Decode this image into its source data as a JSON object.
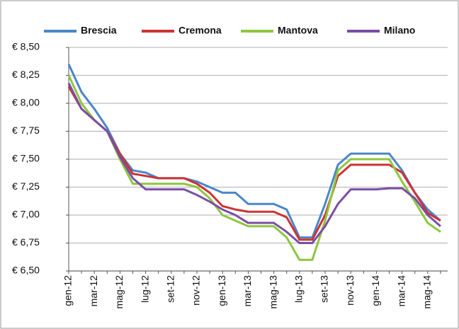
{
  "chart_data": {
    "type": "line",
    "categories": [
      "gen-12",
      null,
      "mar-12",
      null,
      "mag-12",
      null,
      "lug-12",
      null,
      "set-12",
      null,
      "nov-12",
      null,
      "gen-13",
      null,
      "mar-13",
      null,
      "mag-13",
      null,
      "lug-13",
      null,
      "set-13",
      null,
      "nov-13",
      null,
      "gen-14",
      null,
      "mar-14",
      null,
      "mag-14",
      null
    ],
    "series": [
      {
        "name": "Brescia",
        "color": "#4a86c8",
        "values": [
          8.35,
          8.1,
          7.95,
          7.78,
          7.55,
          7.4,
          7.38,
          7.33,
          7.33,
          7.33,
          7.3,
          7.25,
          7.2,
          7.2,
          7.1,
          7.1,
          7.1,
          7.05,
          6.8,
          6.8,
          7.1,
          7.45,
          7.55,
          7.55,
          7.55,
          7.55,
          7.4,
          7.2,
          7.05,
          6.95
        ]
      },
      {
        "name": "Cremona",
        "color": "#cc3333",
        "values": [
          8.15,
          7.95,
          7.85,
          7.75,
          7.55,
          7.37,
          7.35,
          7.33,
          7.33,
          7.33,
          7.28,
          7.2,
          7.08,
          7.05,
          7.03,
          7.03,
          7.03,
          6.98,
          6.78,
          6.78,
          7.0,
          7.35,
          7.45,
          7.45,
          7.45,
          7.45,
          7.38,
          7.2,
          7.02,
          6.95
        ]
      },
      {
        "name": "Mantova",
        "color": "#8dc63f",
        "values": [
          8.25,
          8.0,
          7.85,
          7.75,
          7.5,
          7.28,
          7.28,
          7.28,
          7.28,
          7.28,
          7.25,
          7.15,
          7.0,
          6.95,
          6.9,
          6.9,
          6.9,
          6.8,
          6.6,
          6.6,
          6.95,
          7.4,
          7.5,
          7.5,
          7.5,
          7.5,
          7.3,
          7.12,
          6.93,
          6.85
        ]
      },
      {
        "name": "Milano",
        "color": "#7a4ea3",
        "values": [
          8.18,
          7.95,
          7.85,
          7.75,
          7.52,
          7.33,
          7.23,
          7.23,
          7.23,
          7.23,
          7.18,
          7.12,
          7.05,
          7.0,
          6.93,
          6.93,
          6.93,
          6.85,
          6.75,
          6.75,
          6.9,
          7.1,
          7.23,
          7.23,
          7.23,
          7.24,
          7.24,
          7.15,
          7.0,
          6.9
        ]
      }
    ],
    "ylim": [
      6.5,
      8.5
    ],
    "yticks": [
      {
        "value": 6.5,
        "label": "€ 6,50"
      },
      {
        "value": 6.75,
        "label": "€ 6,75"
      },
      {
        "value": 7.0,
        "label": "€ 7,00"
      },
      {
        "value": 7.25,
        "label": "€ 7,25"
      },
      {
        "value": 7.5,
        "label": "€ 7,50"
      },
      {
        "value": 7.75,
        "label": "€ 7,75"
      },
      {
        "value": 8.0,
        "label": "€ 8,00"
      },
      {
        "value": 8.25,
        "label": "€ 8,25"
      },
      {
        "value": 8.5,
        "label": "€ 8,50"
      }
    ],
    "grid": true,
    "legend": "top"
  }
}
